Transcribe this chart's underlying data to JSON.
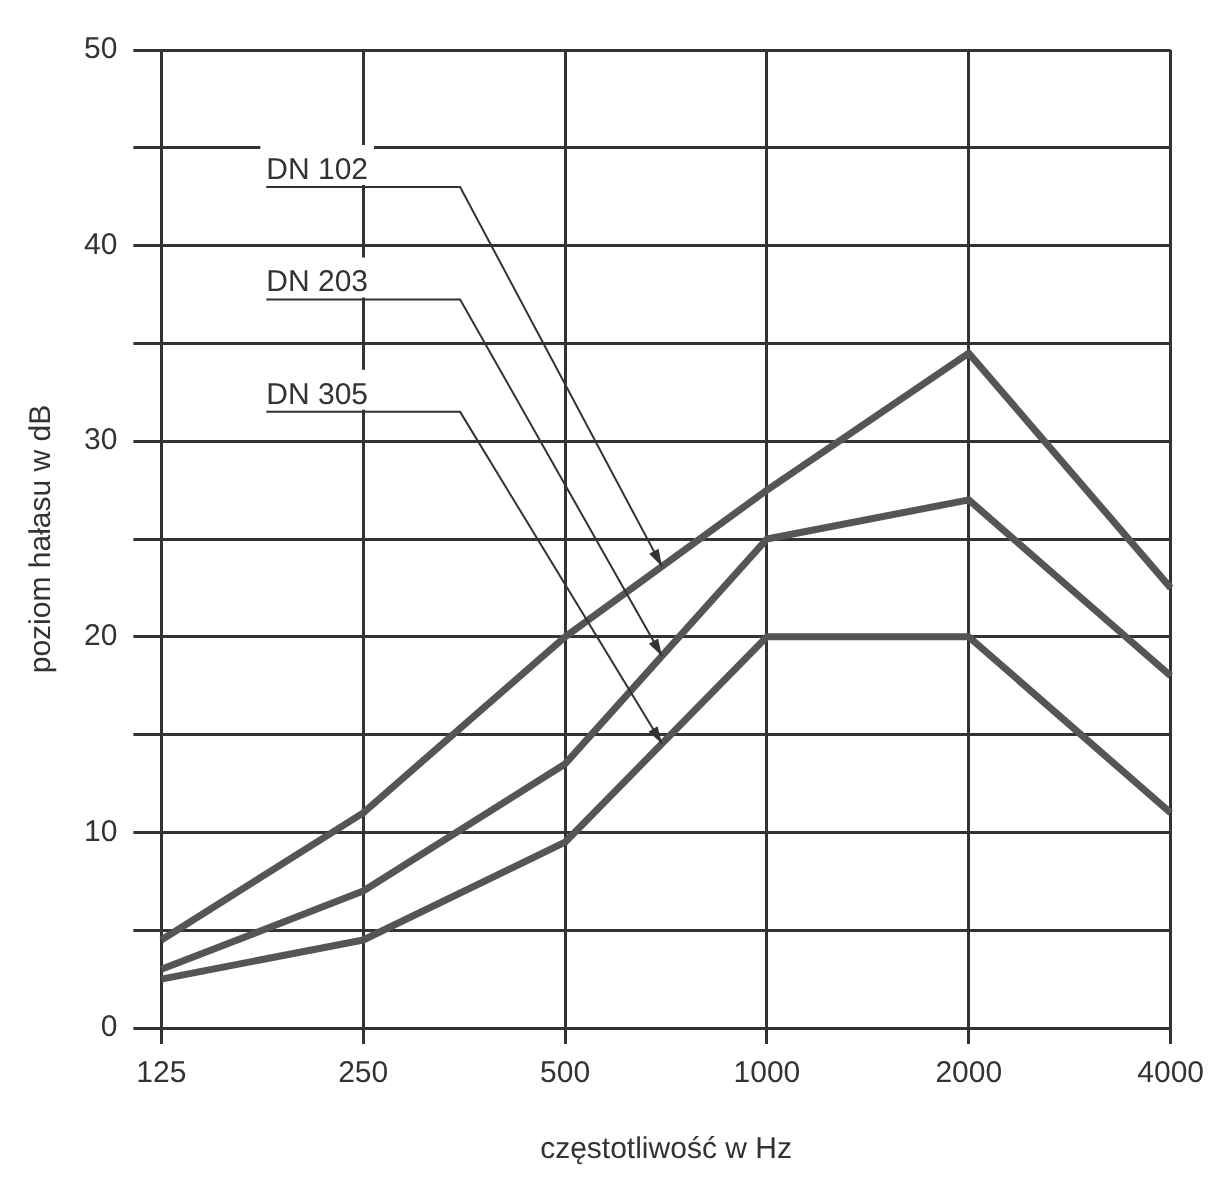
{
  "chart_data": {
    "type": "line",
    "xlabel": "częstotliwość w Hz",
    "ylabel": "poziom hałasu w dB",
    "categories": [
      "125",
      "250",
      "500",
      "1000",
      "2000",
      "4000"
    ],
    "series": [
      {
        "name": "DN 102",
        "color": "#555555",
        "values": [
          4.5,
          11,
          20,
          27.5,
          34.5,
          22.5
        ]
      },
      {
        "name": "DN 203",
        "color": "#555555",
        "values": [
          3,
          7,
          13.5,
          25,
          27,
          18
        ]
      },
      {
        "name": "DN 305",
        "color": "#555555",
        "values": [
          2.5,
          4.5,
          9.5,
          20,
          20,
          11
        ]
      }
    ],
    "ylim": [
      0,
      50
    ],
    "yticks": [
      0,
      10,
      20,
      30,
      40,
      50
    ],
    "grid": true,
    "legend": false,
    "marker": "none",
    "line_style": "solid"
  }
}
